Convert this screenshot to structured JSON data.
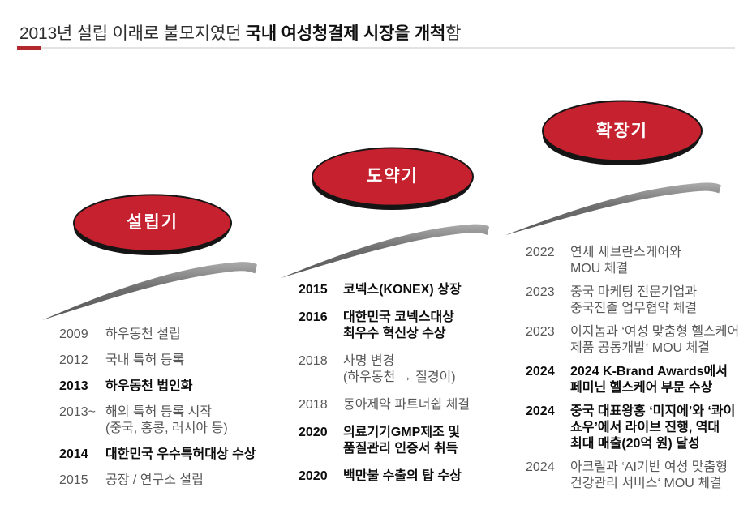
{
  "title": {
    "prefix": "2013년 설립 이래로 불모지였던 ",
    "bold": "국내 여성청결제 시장을 개척",
    "suffix": "함"
  },
  "colors": {
    "accent_red": "#c5212f",
    "divider_red": "#b3282f",
    "divider_gray": "#e3e3e3",
    "swoosh_gray": "#6e6e6e",
    "text_title": "#2e2e2e",
    "text_normal": "#575757",
    "text_bold": "#0c0c0c",
    "ellipse_label": "#ffffff"
  },
  "phases": [
    {
      "label": "설립기",
      "items": [
        {
          "year": "2009",
          "bold": false,
          "lines": [
            "하우동천 설립"
          ]
        },
        {
          "year": "2012",
          "bold": false,
          "lines": [
            "국내 특허 등록"
          ]
        },
        {
          "year": "2013",
          "bold": true,
          "lines": [
            "하우동천 법인화"
          ]
        },
        {
          "year": "2013~",
          "bold": false,
          "lines": [
            "해외 특허 등록 시작",
            "(중국, 홍콩, 러시아 등)"
          ]
        },
        {
          "year": "2014",
          "bold": true,
          "lines": [
            "대한민국 우수특허대상 수상"
          ]
        },
        {
          "year": "2015",
          "bold": false,
          "lines": [
            "공장 / 연구소 설립"
          ]
        }
      ]
    },
    {
      "label": "도약기",
      "items": [
        {
          "year": "2015",
          "bold": true,
          "lines": [
            "코넥스(KONEX) 상장"
          ]
        },
        {
          "year": "2016",
          "bold": true,
          "lines": [
            "대한민국 코넥스대상",
            "최우수 혁신상 수상"
          ]
        },
        {
          "year": "2018",
          "bold": false,
          "lines": [
            "사명 변경",
            "(하우동천 → 질경이)"
          ]
        },
        {
          "year": "2018",
          "bold": false,
          "lines": [
            "동아제약 파트너쉽 체결"
          ]
        },
        {
          "year": "2020",
          "bold": true,
          "lines": [
            "의료기기GMP제조 및",
            "품질관리 인증서 취득"
          ]
        },
        {
          "year": "2020",
          "bold": true,
          "lines": [
            "백만불 수출의 탑 수상"
          ]
        }
      ]
    },
    {
      "label": "확장기",
      "items": [
        {
          "year": "2022",
          "bold": false,
          "lines": [
            "연세 세브란스케어와",
            "MOU 체결"
          ]
        },
        {
          "year": "2023",
          "bold": false,
          "lines": [
            "중국 마케팅 전문기업과",
            "중국진출 업무협약 체결"
          ]
        },
        {
          "year": "2023",
          "bold": false,
          "lines": [
            "이지놈과 ‘여성 맞춤형 헬스케어",
            "제품 공동개발‘ MOU 체결"
          ]
        },
        {
          "year": "2024",
          "bold": true,
          "lines": [
            "2024 K-Brand Awards에서",
            "페미닌 헬스케어 부문 수상"
          ]
        },
        {
          "year": "2024",
          "bold": true,
          "lines": [
            "중국 대표왕홍 ‘미지에’와 ‘콰이",
            "쇼우’에서 라이브 진행, 역대",
            "최대 매출(20억 원) 달성"
          ]
        },
        {
          "year": "2024",
          "bold": false,
          "lines": [
            "아크릴과 ‘AI기반 여성 맞춤형",
            "건강관리 서비스‘ MOU 체결"
          ]
        }
      ]
    }
  ]
}
